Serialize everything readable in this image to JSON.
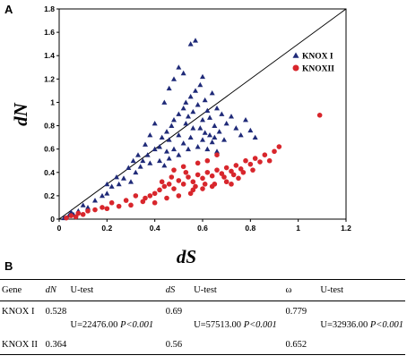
{
  "panels": {
    "a": "A",
    "b": "B"
  },
  "chart_data": {
    "type": "scatter",
    "xlabel": "dS",
    "ylabel": "dN",
    "xlim": [
      0,
      1.2
    ],
    "ylim": [
      0,
      1.8
    ],
    "x_ticks": [
      "0",
      "0.2",
      "0.4",
      "0.6",
      "0.8",
      "1",
      "1.2"
    ],
    "y_ticks": [
      "0",
      "0.2",
      "0.4",
      "0.6",
      "0.8",
      "1",
      "1.2",
      "1.4",
      "1.6",
      "1.8"
    ],
    "reference_line": {
      "from": [
        0,
        0
      ],
      "to": [
        1.2,
        1.8
      ]
    },
    "legend_position": "upper-right",
    "series": [
      {
        "name": "KNOX I",
        "marker": "triangle",
        "color": "#1f2a78",
        "points": [
          [
            0.02,
            0.01
          ],
          [
            0.04,
            0.03
          ],
          [
            0.05,
            0.06
          ],
          [
            0.06,
            0.04
          ],
          [
            0.08,
            0.07
          ],
          [
            0.1,
            0.12
          ],
          [
            0.12,
            0.1
          ],
          [
            0.15,
            0.16
          ],
          [
            0.18,
            0.2
          ],
          [
            0.2,
            0.22
          ],
          [
            0.22,
            0.28
          ],
          [
            0.25,
            0.3
          ],
          [
            0.27,
            0.35
          ],
          [
            0.3,
            0.32
          ],
          [
            0.32,
            0.4
          ],
          [
            0.34,
            0.45
          ],
          [
            0.35,
            0.5
          ],
          [
            0.37,
            0.55
          ],
          [
            0.38,
            0.48
          ],
          [
            0.4,
            0.6
          ],
          [
            0.42,
            0.62
          ],
          [
            0.43,
            0.7
          ],
          [
            0.45,
            0.75
          ],
          [
            0.46,
            0.68
          ],
          [
            0.47,
            0.8
          ],
          [
            0.48,
            0.85
          ],
          [
            0.5,
            0.9
          ],
          [
            0.5,
            0.72
          ],
          [
            0.52,
            0.95
          ],
          [
            0.53,
            1.0
          ],
          [
            0.54,
            0.88
          ],
          [
            0.55,
            1.05
          ],
          [
            0.56,
            0.92
          ],
          [
            0.57,
            1.1
          ],
          [
            0.58,
            0.98
          ],
          [
            0.59,
            1.15
          ],
          [
            0.6,
            0.85
          ],
          [
            0.61,
            1.02
          ],
          [
            0.62,
            0.93
          ],
          [
            0.63,
            0.87
          ],
          [
            0.64,
            1.08
          ],
          [
            0.65,
            0.8
          ],
          [
            0.66,
            0.95
          ],
          [
            0.67,
            0.75
          ],
          [
            0.68,
            0.9
          ],
          [
            0.7,
            0.82
          ],
          [
            0.72,
            0.88
          ],
          [
            0.74,
            0.78
          ],
          [
            0.76,
            0.72
          ],
          [
            0.78,
            0.85
          ],
          [
            0.8,
            0.76
          ],
          [
            0.82,
            0.7
          ],
          [
            0.55,
            1.5
          ],
          [
            0.57,
            1.53
          ],
          [
            0.5,
            1.3
          ],
          [
            0.52,
            1.25
          ],
          [
            0.48,
            1.2
          ],
          [
            0.6,
            1.22
          ],
          [
            0.46,
            1.12
          ],
          [
            0.44,
            1.0
          ],
          [
            0.4,
            0.82
          ],
          [
            0.38,
            0.72
          ],
          [
            0.36,
            0.64
          ],
          [
            0.33,
            0.55
          ],
          [
            0.31,
            0.5
          ],
          [
            0.29,
            0.44
          ],
          [
            0.24,
            0.36
          ],
          [
            0.2,
            0.3
          ],
          [
            0.45,
            0.58
          ],
          [
            0.48,
            0.6
          ],
          [
            0.5,
            0.55
          ],
          [
            0.52,
            0.65
          ],
          [
            0.55,
            0.7
          ],
          [
            0.58,
            0.62
          ],
          [
            0.6,
            0.68
          ],
          [
            0.62,
            0.6
          ],
          [
            0.64,
            0.66
          ],
          [
            0.66,
            0.58
          ],
          [
            0.56,
            0.78
          ],
          [
            0.54,
            0.6
          ],
          [
            0.42,
            0.5
          ],
          [
            0.44,
            0.46
          ],
          [
            0.46,
            0.52
          ],
          [
            0.53,
            0.82
          ],
          [
            0.59,
            0.78
          ],
          [
            0.61,
            0.74
          ],
          [
            0.63,
            0.72
          ],
          [
            0.65,
            0.7
          ],
          [
            0.69,
            0.68
          ]
        ]
      },
      {
        "name": "KNOXII",
        "marker": "circle",
        "color": "#d8262c",
        "points": [
          [
            0.03,
            0.01
          ],
          [
            0.05,
            0.03
          ],
          [
            0.08,
            0.05
          ],
          [
            0.1,
            0.04
          ],
          [
            0.15,
            0.08
          ],
          [
            0.2,
            0.09
          ],
          [
            0.25,
            0.11
          ],
          [
            0.3,
            0.12
          ],
          [
            0.35,
            0.15
          ],
          [
            0.38,
            0.2
          ],
          [
            0.4,
            0.22
          ],
          [
            0.42,
            0.25
          ],
          [
            0.44,
            0.28
          ],
          [
            0.46,
            0.3
          ],
          [
            0.48,
            0.26
          ],
          [
            0.5,
            0.33
          ],
          [
            0.52,
            0.3
          ],
          [
            0.54,
            0.36
          ],
          [
            0.56,
            0.32
          ],
          [
            0.58,
            0.38
          ],
          [
            0.6,
            0.35
          ],
          [
            0.62,
            0.4
          ],
          [
            0.64,
            0.37
          ],
          [
            0.66,
            0.42
          ],
          [
            0.68,
            0.39
          ],
          [
            0.7,
            0.44
          ],
          [
            0.72,
            0.41
          ],
          [
            0.74,
            0.46
          ],
          [
            0.76,
            0.43
          ],
          [
            0.78,
            0.5
          ],
          [
            0.8,
            0.47
          ],
          [
            0.82,
            0.52
          ],
          [
            0.84,
            0.49
          ],
          [
            0.86,
            0.55
          ],
          [
            0.88,
            0.5
          ],
          [
            0.9,
            0.58
          ],
          [
            0.92,
            0.62
          ],
          [
            0.5,
            0.2
          ],
          [
            0.55,
            0.22
          ],
          [
            0.6,
            0.26
          ],
          [
            0.65,
            0.3
          ],
          [
            0.7,
            0.32
          ],
          [
            0.75,
            0.35
          ],
          [
            0.45,
            0.18
          ],
          [
            0.4,
            0.14
          ],
          [
            0.48,
            0.42
          ],
          [
            0.52,
            0.45
          ],
          [
            0.58,
            0.48
          ],
          [
            0.62,
            0.5
          ],
          [
            0.66,
            0.55
          ],
          [
            0.56,
            0.25
          ],
          [
            0.64,
            0.28
          ],
          [
            0.72,
            0.3
          ],
          [
            0.36,
            0.18
          ],
          [
            0.43,
            0.32
          ],
          [
            0.47,
            0.36
          ],
          [
            0.53,
            0.4
          ],
          [
            0.57,
            0.28
          ],
          [
            0.61,
            0.3
          ],
          [
            0.69,
            0.36
          ],
          [
            0.73,
            0.38
          ],
          [
            0.77,
            0.4
          ],
          [
            0.81,
            0.42
          ],
          [
            1.09,
            0.89
          ],
          [
            0.28,
            0.16
          ],
          [
            0.32,
            0.2
          ],
          [
            0.22,
            0.14
          ],
          [
            0.18,
            0.1
          ],
          [
            0.12,
            0.07
          ],
          [
            0.07,
            0.02
          ]
        ]
      }
    ]
  },
  "table": {
    "headers": [
      "Gene",
      "dN",
      "U-test",
      "dS",
      "U-test",
      "ω",
      "U-test"
    ],
    "rows": [
      {
        "gene": "KNOX I",
        "dN": "0.528",
        "dN_test": "U=22476.00",
        "dN_p": "P<0.001",
        "dS": "0.69",
        "dS_test": "U=57513.00",
        "dS_p": "P<0.001",
        "w": "0.779",
        "w_test": "U=32936.00",
        "w_p": "P<0.001"
      },
      {
        "gene": "KNOX II",
        "dN": "0.364",
        "dS": "0.56",
        "w": "0.652"
      }
    ]
  }
}
